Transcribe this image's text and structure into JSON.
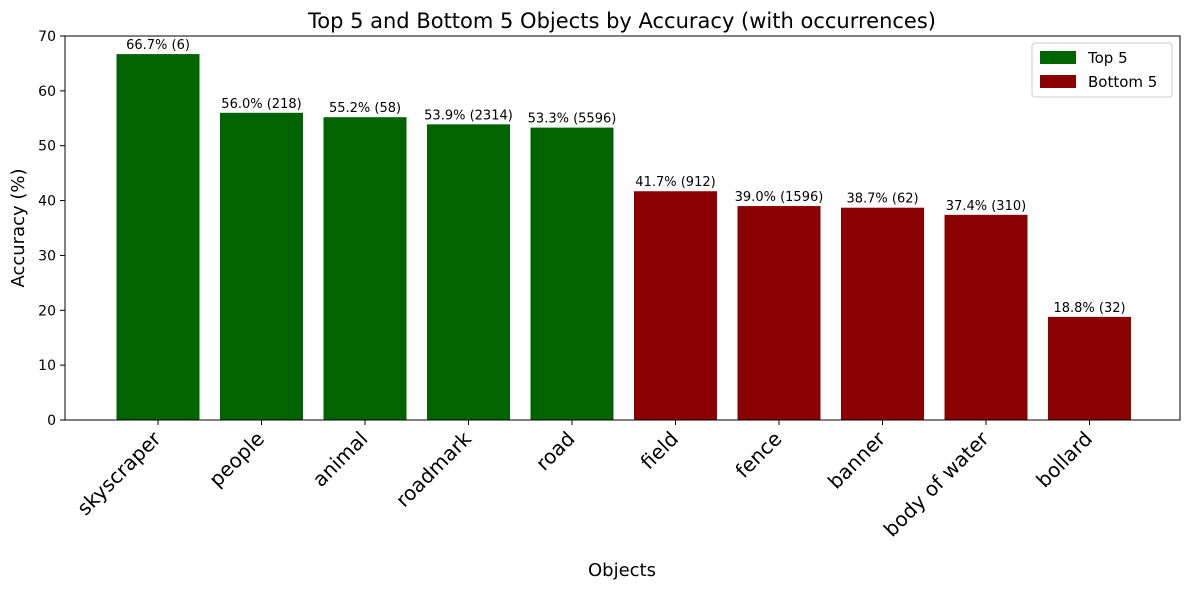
{
  "chart_data": {
    "type": "bar",
    "title": "Top 5 and Bottom 5 Objects by Accuracy (with occurrences)",
    "xlabel": "Objects",
    "ylabel": "Accuracy (%)",
    "ylim": [
      0,
      70
    ],
    "yticks": [
      0,
      10,
      20,
      30,
      40,
      50,
      60,
      70
    ],
    "grid": false,
    "legend_position": "top-right",
    "categories": [
      "skyscraper",
      "people",
      "animal",
      "roadmark",
      "road",
      "field",
      "fence",
      "banner",
      "body of water",
      "bollard"
    ],
    "values": [
      66.7,
      56.0,
      55.2,
      53.9,
      53.3,
      41.7,
      39.0,
      38.7,
      37.4,
      18.8
    ],
    "occurrences": [
      6,
      218,
      58,
      2314,
      5596,
      912,
      1596,
      62,
      310,
      32
    ],
    "data_labels": [
      "66.7% (6)",
      "56.0% (218)",
      "55.2% (58)",
      "53.9% (2314)",
      "53.3% (5596)",
      "41.7% (912)",
      "39.0% (1596)",
      "38.7% (62)",
      "37.4% (310)",
      "18.8% (32)"
    ],
    "groups": [
      "Top 5",
      "Top 5",
      "Top 5",
      "Top 5",
      "Top 5",
      "Bottom 5",
      "Bottom 5",
      "Bottom 5",
      "Bottom 5",
      "Bottom 5"
    ],
    "legend": [
      {
        "name": "Top 5",
        "color": "#006400"
      },
      {
        "name": "Bottom 5",
        "color": "#8b0000"
      }
    ]
  }
}
